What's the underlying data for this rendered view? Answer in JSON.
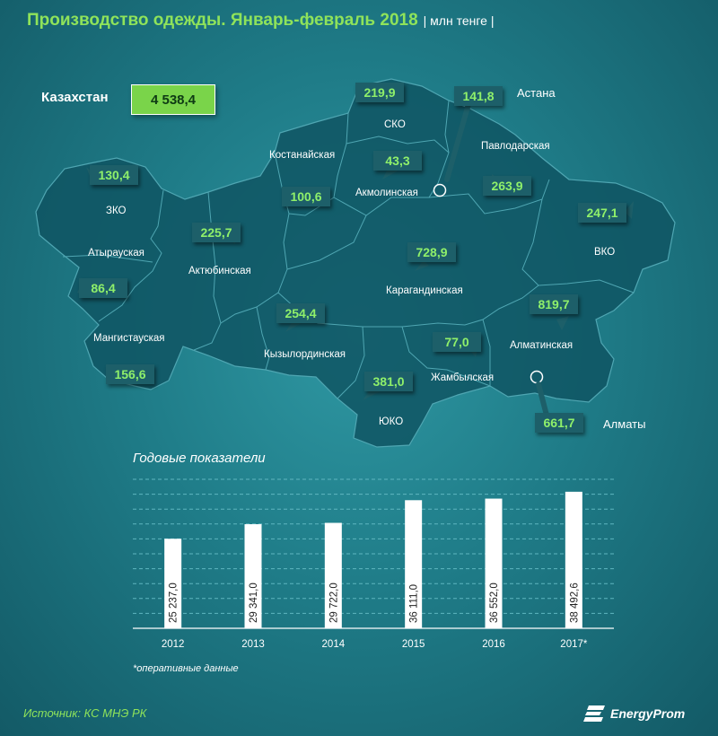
{
  "title": "Производство одежды. Январь-февраль 2018",
  "unit": "| млн тенге |",
  "total": {
    "label": "Казахстан",
    "value": "4 538,4"
  },
  "regions": {
    "zko": {
      "name": "ЗКО",
      "value": "130,4"
    },
    "atyrau": {
      "name": "Атырауская",
      "value": "86,4"
    },
    "mangistau": {
      "name": "Мангистауская",
      "value": "156,6"
    },
    "aktobe": {
      "name": "Актюбинская",
      "value": "225,7"
    },
    "kostanay": {
      "name": "Костанайская",
      "value": "100,6"
    },
    "sko": {
      "name": "СКО",
      "value": "219,9"
    },
    "akmola": {
      "name": "Акмолинская",
      "value": "43,3"
    },
    "astana": {
      "name": "Астана",
      "value": "141,8"
    },
    "pavlodar": {
      "name": "Павлодарская",
      "value": "263,9"
    },
    "vko": {
      "name": "ВКО",
      "value": "247,1"
    },
    "karaganda": {
      "name": "Карагандинская",
      "value": "728,9"
    },
    "kyzylorda": {
      "name": "Кызылординская",
      "value": "254,4"
    },
    "zhambyl": {
      "name": "Жамбылская",
      "value": "77,0"
    },
    "yuko": {
      "name": "ЮКО",
      "value": "381,0"
    },
    "almaty_obl": {
      "name": "Алматинская",
      "value": "819,7"
    },
    "almaty": {
      "name": "Алматы",
      "value": "661,7"
    }
  },
  "chart_data": {
    "type": "bar",
    "title": "Годовые показатели",
    "categories": [
      "2012",
      "2013",
      "2014",
      "2015",
      "2016",
      "2017*"
    ],
    "values": [
      25237.0,
      29341.0,
      29722.0,
      36111.0,
      36552.0,
      38492.6
    ],
    "value_labels": [
      "25 237,0",
      "29 341,0",
      "29 722,0",
      "36 111,0",
      "36 552,0",
      "38 492,6"
    ],
    "ylim": [
      0,
      42000
    ],
    "grid": true,
    "bar_color": "#ffffff"
  },
  "note": "*оперативные данные",
  "source": "Источник: КС МНЭ РК",
  "brand": "EnergyProm"
}
